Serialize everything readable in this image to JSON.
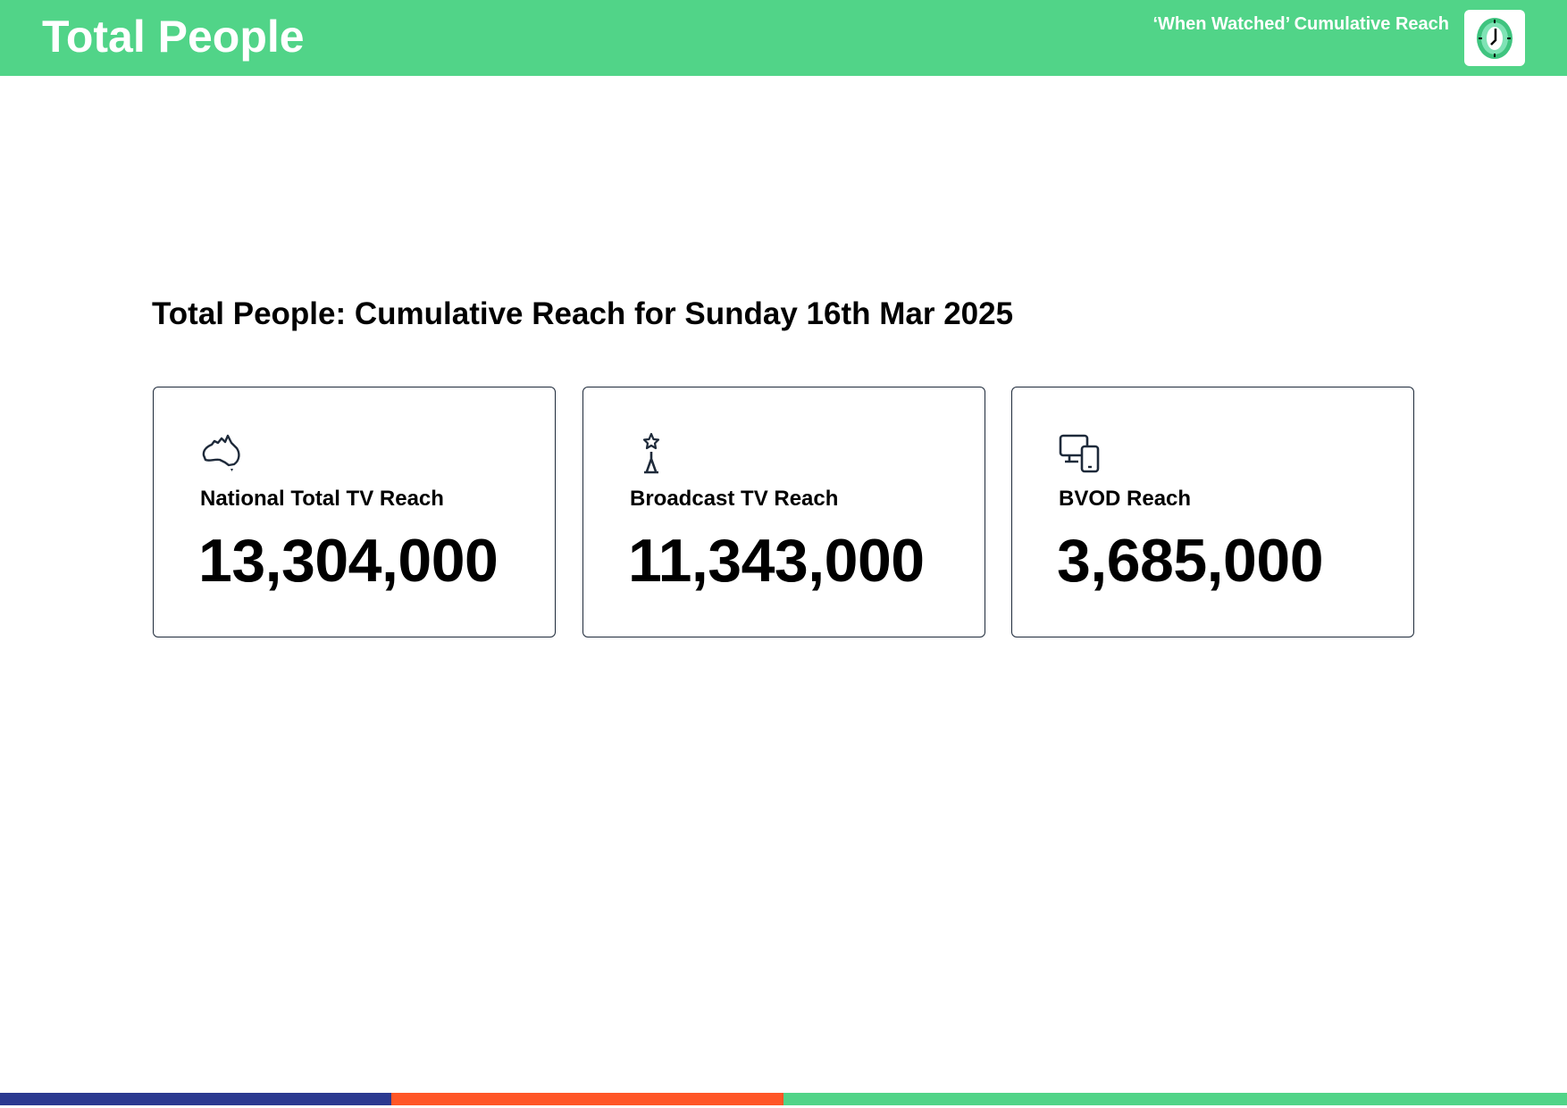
{
  "header": {
    "title": "Total People",
    "subtitle": "‘When Watched’ Cumulative Reach",
    "logo_icon": "clock-icon",
    "background_color": "#51d488"
  },
  "main": {
    "title": "Total People: Cumulative Reach for Sunday 16th Mar 2025",
    "cards": [
      {
        "icon": "australia-map-icon",
        "label": "National Total TV Reach",
        "value": "13,304,000"
      },
      {
        "icon": "broadcast-tower-icon",
        "label": "Broadcast TV Reach",
        "value": "11,343,000"
      },
      {
        "icon": "devices-icon",
        "label": "BVOD Reach",
        "value": "3,685,000"
      }
    ]
  },
  "footer": {
    "bar_colors": [
      "#2b3990",
      "#ff5627",
      "#51d488"
    ]
  }
}
